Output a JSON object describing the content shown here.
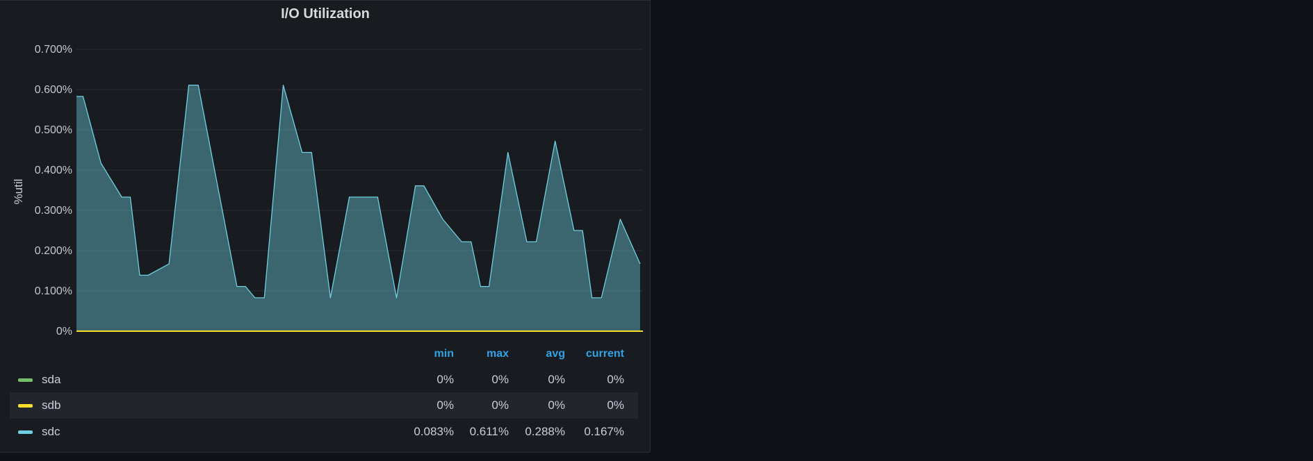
{
  "panel": {
    "title": "I/O Utilization",
    "ylabel": "%util"
  },
  "legend": {
    "headers": {
      "min": "min",
      "max": "max",
      "avg": "avg",
      "current": "current"
    },
    "rows": [
      {
        "name": "sda",
        "color": "#73bf69",
        "min": "0%",
        "max": "0%",
        "avg": "0%",
        "current": "0%"
      },
      {
        "name": "sdb",
        "color": "#fade2a",
        "min": "0%",
        "max": "0%",
        "avg": "0%",
        "current": "0%"
      },
      {
        "name": "sdc",
        "color": "#6ed0e0",
        "min": "0.083%",
        "max": "0.611%",
        "avg": "0.288%",
        "current": "0.167%"
      }
    ]
  },
  "chart_data": {
    "type": "area",
    "title": "I/O Utilization",
    "xlabel": "",
    "ylabel": "%util",
    "ylim": [
      0,
      0.7
    ],
    "yticks": [
      0,
      0.1,
      0.2,
      0.3,
      0.4,
      0.5,
      0.6,
      0.7
    ],
    "ytick_labels": [
      "0%",
      "0.100%",
      "0.200%",
      "0.300%",
      "0.400%",
      "0.500%",
      "0.600%",
      "0.700%"
    ],
    "x_count": 61,
    "series": [
      {
        "name": "sda",
        "color": "#73bf69",
        "values": [
          [
            0,
            0
          ],
          [
            60,
            0
          ]
        ]
      },
      {
        "name": "sdb",
        "color": "#fade2a",
        "values": [
          [
            0,
            0
          ],
          [
            60,
            0
          ]
        ]
      },
      {
        "name": "sdc",
        "color": "#6ed0e0",
        "fill": true,
        "values": [
          [
            0,
            0.583
          ],
          [
            0.7,
            0.583
          ],
          [
            2.6,
            0.417
          ],
          [
            4.8,
            0.333
          ],
          [
            5.7,
            0.333
          ],
          [
            6.7,
            0.139
          ],
          [
            7.6,
            0.139
          ],
          [
            9.8,
            0.167
          ],
          [
            11.9,
            0.611
          ],
          [
            12.9,
            0.611
          ],
          [
            17,
            0.111
          ],
          [
            17.9,
            0.111
          ],
          [
            18.9,
            0.083
          ],
          [
            19.9,
            0.083
          ],
          [
            21.9,
            0.611
          ],
          [
            23.9,
            0.444
          ],
          [
            24.9,
            0.444
          ],
          [
            26.9,
            0.083
          ],
          [
            28.9,
            0.333
          ],
          [
            31.9,
            0.333
          ],
          [
            33.9,
            0.083
          ],
          [
            35.9,
            0.361
          ],
          [
            36.8,
            0.361
          ],
          [
            38.8,
            0.278
          ],
          [
            40.8,
            0.222
          ],
          [
            41.8,
            0.222
          ],
          [
            42.8,
            0.111
          ],
          [
            43.7,
            0.111
          ],
          [
            45.7,
            0.444
          ],
          [
            47.7,
            0.222
          ],
          [
            48.7,
            0.222
          ],
          [
            50.7,
            0.472
          ],
          [
            52.7,
            0.25
          ],
          [
            53.6,
            0.25
          ],
          [
            54.6,
            0.083
          ],
          [
            55.6,
            0.083
          ],
          [
            57.6,
            0.278
          ],
          [
            59.7,
            0.167
          ]
        ]
      }
    ]
  }
}
